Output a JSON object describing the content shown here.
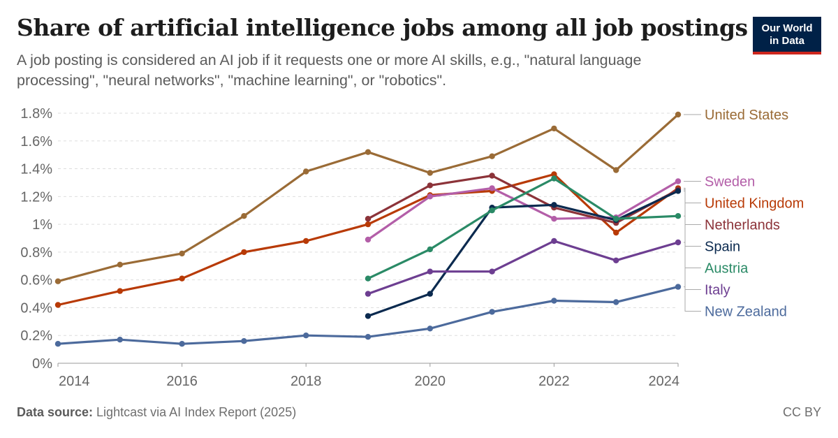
{
  "header": {
    "title": "Share of artificial intelligence jobs among all job postings",
    "subtitle": "A job posting is considered an AI job if it requests one or more AI skills, e.g., \"natural language processing\", \"neural networks\", \"machine learning\", or \"robotics\"."
  },
  "logo": {
    "line1": "Our World",
    "line2": "in Data"
  },
  "footer": {
    "source_label": "Data source:",
    "source_text": " Lightcast via AI Index Report (2025)",
    "license": "CC BY"
  },
  "chart_data": {
    "type": "line",
    "title": "Share of artificial intelligence jobs among all job postings",
    "xlim": [
      2014,
      2024
    ],
    "ylim": [
      0,
      1.8
    ],
    "x_ticks": [
      2014,
      2016,
      2018,
      2020,
      2022,
      2024
    ],
    "y_ticks": [
      {
        "value": 0,
        "label": "0%"
      },
      {
        "value": 0.2,
        "label": "0.2%"
      },
      {
        "value": 0.4,
        "label": "0.4%"
      },
      {
        "value": 0.6,
        "label": "0.6%"
      },
      {
        "value": 0.8,
        "label": "0.8%"
      },
      {
        "value": 1.0,
        "label": "1%"
      },
      {
        "value": 1.2,
        "label": "1.2%"
      },
      {
        "value": 1.4,
        "label": "1.4%"
      },
      {
        "value": 1.6,
        "label": "1.6%"
      },
      {
        "value": 1.8,
        "label": "1.8%"
      }
    ],
    "grid": "horizontal dashed",
    "legend": "direct labels at right end of lines",
    "series": [
      {
        "name": "United States",
        "color": "#9a6b36",
        "points": [
          [
            2014,
            0.59
          ],
          [
            2015,
            0.71
          ],
          [
            2016,
            0.79
          ],
          [
            2017,
            1.06
          ],
          [
            2018,
            1.38
          ],
          [
            2019,
            1.52
          ],
          [
            2020,
            1.37
          ],
          [
            2021,
            1.49
          ],
          [
            2022,
            1.69
          ],
          [
            2023,
            1.39
          ],
          [
            2024,
            1.79
          ]
        ]
      },
      {
        "name": "United Kingdom",
        "color": "#b83a06",
        "points": [
          [
            2014,
            0.42
          ],
          [
            2015,
            0.52
          ],
          [
            2016,
            0.61
          ],
          [
            2017,
            0.8
          ],
          [
            2018,
            0.88
          ],
          [
            2019,
            1.0
          ],
          [
            2020,
            1.21
          ],
          [
            2021,
            1.24
          ],
          [
            2022,
            1.36
          ],
          [
            2023,
            0.94
          ],
          [
            2024,
            1.26
          ]
        ]
      },
      {
        "name": "Sweden",
        "color": "#b35ea8",
        "points": [
          [
            2019,
            0.89
          ],
          [
            2020,
            1.2
          ],
          [
            2021,
            1.26
          ],
          [
            2022,
            1.04
          ],
          [
            2023,
            1.05
          ],
          [
            2024,
            1.31
          ]
        ]
      },
      {
        "name": "Netherlands",
        "color": "#8c3339",
        "points": [
          [
            2019,
            1.04
          ],
          [
            2020,
            1.28
          ],
          [
            2021,
            1.35
          ],
          [
            2022,
            1.12
          ],
          [
            2023,
            1.01
          ],
          [
            2024,
            1.25
          ]
        ]
      },
      {
        "name": "Spain",
        "color": "#0b2a4f",
        "points": [
          [
            2019,
            0.34
          ],
          [
            2020,
            0.5
          ],
          [
            2021,
            1.12
          ],
          [
            2022,
            1.14
          ],
          [
            2023,
            1.03
          ],
          [
            2024,
            1.24
          ]
        ]
      },
      {
        "name": "Austria",
        "color": "#2a8a66",
        "points": [
          [
            2019,
            0.61
          ],
          [
            2020,
            0.82
          ],
          [
            2021,
            1.1
          ],
          [
            2022,
            1.33
          ],
          [
            2023,
            1.04
          ],
          [
            2024,
            1.06
          ]
        ]
      },
      {
        "name": "Italy",
        "color": "#6d3e91",
        "points": [
          [
            2019,
            0.5
          ],
          [
            2020,
            0.66
          ],
          [
            2021,
            0.66
          ],
          [
            2022,
            0.88
          ],
          [
            2023,
            0.74
          ],
          [
            2024,
            0.87
          ]
        ]
      },
      {
        "name": "New Zealand",
        "color": "#4c6a9c",
        "points": [
          [
            2014,
            0.14
          ],
          [
            2015,
            0.17
          ],
          [
            2016,
            0.14
          ],
          [
            2017,
            0.16
          ],
          [
            2018,
            0.2
          ],
          [
            2019,
            0.19
          ],
          [
            2020,
            0.25
          ],
          [
            2021,
            0.37
          ],
          [
            2022,
            0.45
          ],
          [
            2023,
            0.44
          ],
          [
            2024,
            0.55
          ]
        ]
      }
    ],
    "label_order": [
      "United States",
      "Sweden",
      "United Kingdom",
      "Netherlands",
      "Spain",
      "Austria",
      "Italy",
      "New Zealand"
    ]
  }
}
